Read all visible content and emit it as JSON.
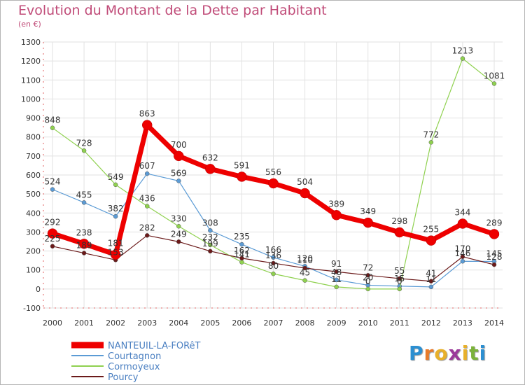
{
  "page": {
    "title": "Evolution du Montant de la Dette par Habitant",
    "unit": "(en €)"
  },
  "brand": {
    "letters": [
      "P",
      "r",
      "o",
      "x",
      "i",
      "t",
      "i"
    ],
    "colors": [
      "#2c8fd1",
      "#e87b2a",
      "#e8b02a",
      "#9c3a9a",
      "#e8b02a",
      "#7bb23a",
      "#2c8fd1"
    ]
  },
  "chart_data": {
    "type": "line",
    "x": [
      2000,
      2001,
      2002,
      2003,
      2004,
      2005,
      2006,
      2007,
      2008,
      2009,
      2010,
      2011,
      2012,
      2013,
      2014
    ],
    "ylim": [
      -100,
      1300
    ],
    "yticks": [
      -100,
      0,
      100,
      200,
      300,
      400,
      500,
      600,
      700,
      800,
      900,
      1000,
      1100,
      1200,
      1300
    ],
    "grid": true,
    "legend": "bottom-left",
    "series": [
      {
        "name": "NANTEUIL-LA-FORêT",
        "color": "#ee0000",
        "values": [
          292,
          238,
          181,
          863,
          700,
          632,
          591,
          556,
          504,
          389,
          349,
          298,
          255,
          344,
          289
        ]
      },
      {
        "name": "Courtagnon",
        "color": "#5b9bd5",
        "values": [
          524,
          455,
          382,
          607,
          569,
          308,
          235,
          166,
          120,
          48,
          20,
          15,
          11,
          146,
          145
        ]
      },
      {
        "name": "Cormoyeux",
        "color": "#8fd14f",
        "values": [
          848,
          728,
          549,
          436,
          330,
          232,
          141,
          80,
          45,
          11,
          0,
          0,
          772,
          1213,
          1081
        ]
      },
      {
        "name": "Pourcy",
        "color": "#6b1a1a",
        "values": [
          225,
          189,
          153,
          282,
          249,
          199,
          162,
          136,
          110,
          91,
          72,
          55,
          41,
          170,
          128
        ]
      }
    ]
  }
}
